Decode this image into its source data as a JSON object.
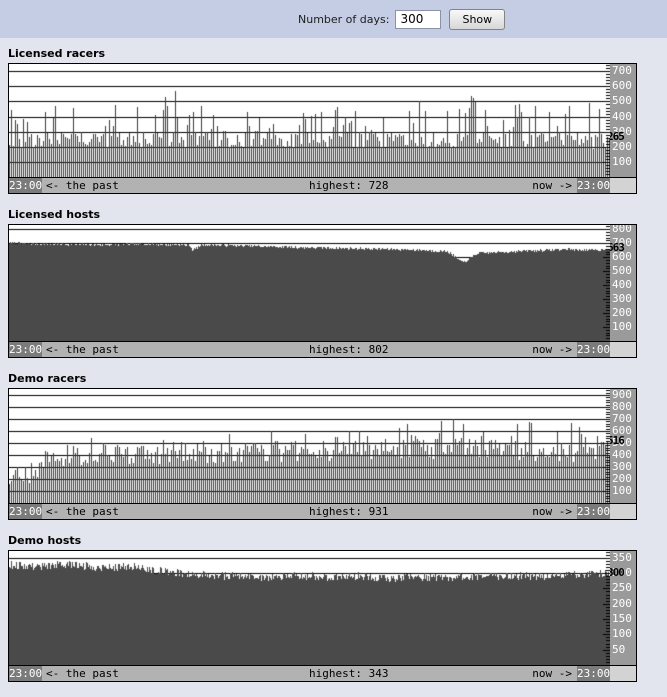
{
  "page": {
    "background": "#e2e5ee",
    "topbar_background": "#c5cde4"
  },
  "form": {
    "label": "Number of days:",
    "input_value": "300",
    "button_label": "Show"
  },
  "colors": {
    "plot_bg": "#ffffff",
    "grid": "#000000",
    "bar_color": "#3d3d3d",
    "area_fill": "#4a4a4a",
    "axis_panel": "#9a9a9a",
    "axis_label": "#ffffff",
    "current_label": "#000000",
    "footer_bg": "#b2b2b2",
    "footer_time_bg": "#7b7b7b",
    "footer_axis_bg": "#d3d3d3"
  },
  "chart_data": [
    {
      "type": "bar",
      "title": "Licensed racers",
      "current_value": 265,
      "highest_value": 728,
      "y_ticks": [
        700,
        600,
        500,
        400,
        300,
        200,
        100
      ],
      "y_axis_top": 748,
      "minor_tick_step": 20,
      "major_tick_step": 100,
      "footer": {
        "left_time": "23:00",
        "past": "<- the past",
        "highest": "highest: 728",
        "now": "now ->",
        "right_time": "23:00"
      },
      "render": {
        "style": "bars",
        "seed": 3,
        "step": 2,
        "clamp": 735,
        "base_envelope": [
          [
            0,
            185
          ],
          [
            0.5,
            190
          ],
          [
            1,
            185
          ]
        ],
        "base_var": 115,
        "spikes": [
          {
            "p": 0.3,
            "amp": 240
          },
          {
            "p": 0.05,
            "amp": 210
          }
        ]
      }
    },
    {
      "type": "area",
      "title": "Licensed hosts",
      "current_value": 663,
      "highest_value": 802,
      "y_ticks": [
        800,
        700,
        600,
        500,
        400,
        300,
        200,
        100
      ],
      "y_axis_top": 830,
      "minor_tick_step": 20,
      "major_tick_step": 100,
      "footer": {
        "left_time": "23:00",
        "past": "<- the past",
        "highest": "highest: 802",
        "now": "now ->",
        "right_time": "23:00"
      },
      "render": {
        "style": "area",
        "seed": 7,
        "noise": 9,
        "top_edge_envelope": [
          [
            0,
            700
          ],
          [
            0.08,
            692
          ],
          [
            0.15,
            688
          ],
          [
            0.22,
            694
          ],
          [
            0.3,
            686
          ],
          [
            0.305,
            648
          ],
          [
            0.32,
            688
          ],
          [
            0.4,
            680
          ],
          [
            0.5,
            668
          ],
          [
            0.6,
            660
          ],
          [
            0.68,
            652
          ],
          [
            0.73,
            640
          ],
          [
            0.755,
            560
          ],
          [
            0.78,
            628
          ],
          [
            0.82,
            636
          ],
          [
            0.88,
            648
          ],
          [
            0.93,
            656
          ],
          [
            0.97,
            648
          ],
          [
            1,
            660
          ]
        ]
      }
    },
    {
      "type": "bar",
      "title": "Demo racers",
      "current_value": 516,
      "highest_value": 931,
      "y_ticks": [
        900,
        800,
        700,
        600,
        500,
        400,
        300,
        200,
        100
      ],
      "y_axis_top": 950,
      "minor_tick_step": 20,
      "major_tick_step": 100,
      "footer": {
        "left_time": "23:00",
        "past": "<- the past",
        "highest": "highest: 931",
        "now": "now ->",
        "right_time": "23:00"
      },
      "render": {
        "style": "bars",
        "seed": 5,
        "step": 2,
        "clamp": 895,
        "base_envelope": [
          [
            0,
            120
          ],
          [
            0.04,
            160
          ],
          [
            0.07,
            300
          ],
          [
            0.15,
            320
          ],
          [
            0.25,
            310
          ],
          [
            0.35,
            330
          ],
          [
            0.45,
            340
          ],
          [
            0.55,
            350
          ],
          [
            0.62,
            370
          ],
          [
            0.72,
            365
          ],
          [
            0.82,
            355
          ],
          [
            0.92,
            345
          ],
          [
            1,
            340
          ]
        ],
        "base_var": 170,
        "spikes": [
          {
            "p": 0.25,
            "amp": 200
          },
          {
            "p": 0.04,
            "amp": 180
          }
        ]
      }
    },
    {
      "type": "area",
      "title": "Demo hosts",
      "current_value": 300,
      "highest_value": 343,
      "y_ticks": [
        350,
        300,
        250,
        200,
        150,
        100,
        50
      ],
      "y_axis_top": 372,
      "minor_tick_step": 10,
      "major_tick_step": 50,
      "footer": {
        "left_time": "23:00",
        "past": "<- the past",
        "highest": "highest: 343",
        "now": "now ->",
        "right_time": "23:00"
      },
      "render": {
        "style": "area",
        "seed": 9,
        "noise": 13,
        "top_edge_envelope": [
          [
            0,
            326
          ],
          [
            0.05,
            322
          ],
          [
            0.1,
            328
          ],
          [
            0.15,
            318
          ],
          [
            0.2,
            322
          ],
          [
            0.24,
            310
          ],
          [
            0.28,
            300
          ],
          [
            0.33,
            294
          ],
          [
            0.38,
            290
          ],
          [
            0.43,
            286
          ],
          [
            0.48,
            292
          ],
          [
            0.53,
            286
          ],
          [
            0.58,
            290
          ],
          [
            0.63,
            282
          ],
          [
            0.68,
            288
          ],
          [
            0.73,
            284
          ],
          [
            0.78,
            290
          ],
          [
            0.83,
            292
          ],
          [
            0.88,
            288
          ],
          [
            0.93,
            294
          ],
          [
            1,
            298
          ]
        ]
      }
    }
  ]
}
